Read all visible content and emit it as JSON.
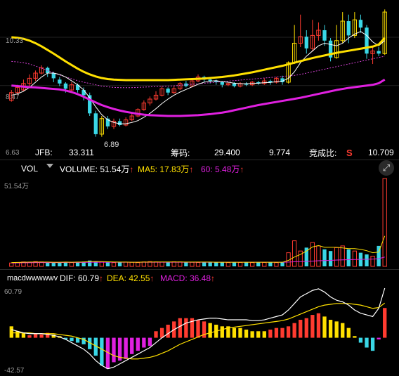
{
  "colors": {
    "up": "#ff3b30",
    "down": "#3ad7e6",
    "hl": "#ffe000",
    "ma_yellow": "#ffe000",
    "ma_magenta": "#e020e0",
    "ma_white": "#ffffff",
    "magenta_dot": "#d040d0",
    "red_arrow": "#ff3b30",
    "bg": "#000000"
  },
  "kline": {
    "axis": {
      "top": "10.33",
      "mid": "8.47",
      "bottom": "6.63",
      "low_marker": "6.89"
    },
    "info": {
      "k1": "JFB:",
      "v1": "33.311",
      "k2": "筹码:",
      "v2": "29.400",
      "v3": "9.774",
      "k3": "竞成比:",
      "k3_badge": "S",
      "v4": "10.709"
    },
    "candles": [
      [
        7.9,
        8.2,
        7.85,
        8.3
      ],
      [
        8.2,
        8.4,
        8.1,
        8.5
      ],
      [
        8.3,
        8.55,
        8.25,
        8.7
      ],
      [
        8.55,
        8.75,
        8.45,
        8.9
      ],
      [
        8.75,
        8.95,
        8.65,
        9.05
      ],
      [
        8.95,
        9.15,
        8.9,
        9.25
      ],
      [
        9.15,
        8.95,
        8.8,
        9.2
      ],
      [
        8.95,
        8.75,
        8.6,
        9.0
      ],
      [
        8.7,
        8.55,
        8.45,
        8.8
      ],
      [
        8.55,
        8.35,
        8.2,
        8.6
      ],
      [
        8.3,
        8.5,
        8.2,
        8.6
      ],
      [
        8.5,
        8.3,
        8.2,
        8.55
      ],
      [
        8.3,
        8.1,
        7.9,
        8.4
      ],
      [
        8.1,
        7.4,
        7.3,
        8.2
      ],
      [
        7.4,
        6.6,
        6.5,
        7.5
      ],
      [
        6.6,
        7.2,
        6.5,
        7.3
      ],
      [
        7.2,
        6.9,
        6.8,
        7.3
      ],
      [
        6.9,
        7.1,
        6.8,
        7.2
      ],
      [
        7.1,
        6.95,
        6.9,
        7.2
      ],
      [
        6.95,
        7.15,
        6.9,
        7.25
      ],
      [
        7.15,
        7.3,
        7.1,
        7.4
      ],
      [
        7.3,
        7.55,
        7.25,
        7.6
      ],
      [
        7.55,
        7.8,
        7.5,
        7.9
      ],
      [
        7.8,
        7.95,
        7.7,
        8.05
      ],
      [
        7.95,
        8.1,
        7.9,
        8.25
      ],
      [
        8.1,
        8.35,
        8.05,
        8.45
      ],
      [
        8.35,
        8.2,
        8.1,
        8.4
      ],
      [
        8.2,
        8.35,
        8.15,
        8.45
      ],
      [
        8.35,
        8.55,
        8.3,
        8.6
      ],
      [
        8.55,
        8.45,
        8.4,
        8.65
      ],
      [
        8.45,
        8.65,
        8.4,
        8.75
      ],
      [
        8.65,
        8.8,
        8.6,
        8.9
      ],
      [
        8.8,
        8.7,
        8.6,
        8.85
      ],
      [
        8.7,
        8.65,
        8.55,
        8.8
      ],
      [
        8.65,
        8.6,
        8.5,
        8.7
      ],
      [
        8.6,
        8.5,
        8.4,
        8.65
      ],
      [
        8.5,
        8.55,
        8.45,
        8.6
      ],
      [
        8.55,
        8.45,
        8.4,
        8.6
      ],
      [
        8.45,
        8.55,
        8.4,
        8.6
      ],
      [
        8.55,
        8.5,
        8.45,
        8.6
      ],
      [
        8.5,
        8.6,
        8.45,
        8.65
      ],
      [
        8.6,
        8.55,
        8.5,
        8.65
      ],
      [
        8.55,
        8.65,
        8.5,
        8.75
      ],
      [
        8.65,
        8.6,
        8.5,
        8.7
      ],
      [
        8.6,
        8.75,
        8.55,
        8.8
      ],
      [
        8.75,
        8.6,
        8.5,
        8.85
      ],
      [
        8.6,
        9.35,
        8.55,
        9.4
      ],
      [
        9.35,
        10.1,
        9.3,
        10.8
      ],
      [
        10.1,
        10.35,
        9.95,
        11.2
      ],
      [
        10.35,
        9.9,
        9.7,
        10.6
      ],
      [
        9.9,
        10.4,
        9.8,
        11.0
      ],
      [
        10.4,
        10.6,
        10.2,
        10.9
      ],
      [
        10.6,
        10.2,
        10.0,
        10.8
      ],
      [
        10.2,
        9.55,
        9.4,
        10.3
      ],
      [
        9.55,
        10.2,
        9.5,
        10.8
      ],
      [
        10.2,
        10.95,
        10.1,
        11.3
      ],
      [
        10.95,
        10.4,
        10.1,
        11.2
      ],
      [
        10.4,
        11.0,
        10.3,
        11.3
      ],
      [
        11.0,
        10.7,
        10.5,
        11.2
      ],
      [
        10.7,
        9.7,
        9.5,
        10.8
      ],
      [
        9.7,
        9.8,
        9.3,
        10.0
      ],
      [
        9.8,
        9.7,
        9.6,
        9.95
      ],
      [
        9.7,
        11.3,
        9.65,
        11.4
      ]
    ],
    "ma_yellow": [
      10.33,
      10.31,
      10.27,
      10.2,
      10.1,
      9.98,
      9.84,
      9.7,
      9.55,
      9.4,
      9.26,
      9.12,
      9.0,
      8.9,
      8.82,
      8.76,
      8.72,
      8.7,
      8.69,
      8.68,
      8.68,
      8.68,
      8.68,
      8.68,
      8.68,
      8.68,
      8.68,
      8.69,
      8.7,
      8.71,
      8.72,
      8.73,
      8.74,
      8.76,
      8.78,
      8.8,
      8.83,
      8.86,
      8.9,
      8.94,
      8.98,
      9.03,
      9.08,
      9.13,
      9.18,
      9.23,
      9.29,
      9.35,
      9.41,
      9.47,
      9.53,
      9.58,
      9.63,
      9.68,
      9.73,
      9.77,
      9.81,
      9.85,
      9.89,
      9.93,
      9.97,
      10.05,
      10.3
    ],
    "ma_magenta": [
      8.47,
      8.45,
      8.43,
      8.41,
      8.4,
      8.38,
      8.36,
      8.34,
      8.32,
      8.28,
      8.22,
      8.14,
      8.04,
      7.93,
      7.82,
      7.72,
      7.64,
      7.57,
      7.51,
      7.46,
      7.42,
      7.38,
      7.35,
      7.33,
      7.32,
      7.31,
      7.3,
      7.3,
      7.3,
      7.31,
      7.32,
      7.33,
      7.35,
      7.37,
      7.4,
      7.43,
      7.47,
      7.52,
      7.57,
      7.62,
      7.67,
      7.72,
      7.76,
      7.8,
      7.84,
      7.88,
      7.92,
      7.96,
      8.0,
      8.05,
      8.1,
      8.15,
      8.2,
      8.25,
      8.3,
      8.34,
      8.38,
      8.41,
      8.44,
      8.47,
      8.5,
      8.56,
      8.7
    ],
    "ma_dotted": [
      9.4,
      9.38,
      9.35,
      9.3,
      9.22,
      9.14,
      9.05,
      8.96,
      8.88,
      8.8,
      8.73,
      8.66,
      8.6,
      8.55,
      8.5,
      8.45,
      8.42,
      8.4,
      8.39,
      8.39,
      8.39,
      8.4,
      8.41,
      8.42,
      8.43,
      8.44,
      8.45,
      8.46,
      8.48,
      8.5,
      8.52,
      8.54,
      8.56,
      8.58,
      8.6,
      8.62,
      8.64,
      8.66,
      8.68,
      8.7,
      8.72,
      8.74,
      8.76,
      8.78,
      8.8,
      8.82,
      8.84,
      8.86,
      8.9,
      8.95,
      9.0,
      9.05,
      9.1,
      9.15,
      9.2,
      9.25,
      9.3,
      9.35,
      9.4,
      9.45,
      9.5,
      9.55,
      9.6
    ],
    "ma_white": [
      8.1,
      8.15,
      8.25,
      8.4,
      8.6,
      8.8,
      8.95,
      8.95,
      8.9,
      8.8,
      8.65,
      8.5,
      8.3,
      8.0,
      7.65,
      7.35,
      7.15,
      7.05,
      7.0,
      7.0,
      7.05,
      7.12,
      7.25,
      7.4,
      7.58,
      7.78,
      7.95,
      8.1,
      8.22,
      8.32,
      8.42,
      8.52,
      8.6,
      8.64,
      8.66,
      8.62,
      8.6,
      8.56,
      8.54,
      8.54,
      8.55,
      8.56,
      8.58,
      8.59,
      8.62,
      8.64,
      8.75,
      9.0,
      9.35,
      9.6,
      9.8,
      10.0,
      10.1,
      10.05,
      10.0,
      10.1,
      10.3,
      10.45,
      10.55,
      10.4,
      10.15,
      10.0,
      10.2
    ]
  },
  "volume": {
    "header": {
      "name": "VOL",
      "volume_label": "VOLUME: 51.54万",
      "ma5_label": "MA5: 17.83万",
      "ma60_label": "60: 5.48万"
    },
    "axis_top": "51.54万",
    "values": [
      2.0,
      2.2,
      2.6,
      2.4,
      2.8,
      2.6,
      2.5,
      2.3,
      2.4,
      2.6,
      2.2,
      2.5,
      2.8,
      3.4,
      3.0,
      2.6,
      2.4,
      2.2,
      2.3,
      2.5,
      2.4,
      2.2,
      2.6,
      2.8,
      2.6,
      2.5,
      2.4,
      2.7,
      2.6,
      2.5,
      2.4,
      2.3,
      2.6,
      2.4,
      2.5,
      2.3,
      2.2,
      2.4,
      2.3,
      2.5,
      2.2,
      2.4,
      2.3,
      2.5,
      2.2,
      2.4,
      8.0,
      15.0,
      9.0,
      11.0,
      14.0,
      12.0,
      10.0,
      9.0,
      11.0,
      12.0,
      10.0,
      9.0,
      8.0,
      7.0,
      6.0,
      12.0,
      51.54
    ],
    "colors_by_candle": true,
    "ma5": [
      2.2,
      2.3,
      2.4,
      2.5,
      2.5,
      2.5,
      2.5,
      2.4,
      2.4,
      2.5,
      2.4,
      2.5,
      2.6,
      2.8,
      2.9,
      2.8,
      2.7,
      2.6,
      2.5,
      2.5,
      2.4,
      2.4,
      2.5,
      2.5,
      2.6,
      2.6,
      2.6,
      2.6,
      2.6,
      2.5,
      2.5,
      2.5,
      2.5,
      2.5,
      2.4,
      2.4,
      2.4,
      2.4,
      2.4,
      2.4,
      2.4,
      2.4,
      2.4,
      2.4,
      2.4,
      2.4,
      3.5,
      5.5,
      7.0,
      9.0,
      11.4,
      12.2,
      11.2,
      11.2,
      11.2,
      10.8,
      10.4,
      10.4,
      10.0,
      9.2,
      8.0,
      8.4,
      17.83
    ],
    "ma60": [
      2.0,
      2.0,
      2.1,
      2.1,
      2.2,
      2.2,
      2.2,
      2.2,
      2.2,
      2.3,
      2.3,
      2.3,
      2.3,
      2.4,
      2.4,
      2.4,
      2.4,
      2.4,
      2.4,
      2.4,
      2.4,
      2.4,
      2.4,
      2.4,
      2.4,
      2.4,
      2.4,
      2.4,
      2.4,
      2.4,
      2.4,
      2.4,
      2.4,
      2.4,
      2.4,
      2.4,
      2.4,
      2.4,
      2.4,
      2.4,
      2.4,
      2.4,
      2.4,
      2.4,
      2.4,
      2.4,
      2.5,
      2.7,
      2.8,
      3.0,
      3.1,
      3.3,
      3.4,
      3.5,
      3.7,
      3.8,
      3.9,
      4.0,
      4.1,
      4.2,
      4.3,
      4.5,
      5.48
    ]
  },
  "macd": {
    "header": {
      "name": "macdwwwwwv",
      "dif_label": "DIF: 60.79",
      "dea_label": "DEA: 42.55",
      "macd_label": "MACD: 36.48"
    },
    "axis": {
      "top": "60.79",
      "bottom": "-42.57"
    },
    "hist": [
      14,
      8,
      6,
      3,
      5,
      4,
      6,
      4,
      2,
      -2,
      -4,
      -6,
      -8,
      -14,
      -22,
      -34,
      -38,
      -30,
      -28,
      -26,
      -20,
      -16,
      -12,
      -10,
      8,
      12,
      16,
      20,
      24,
      24,
      24,
      22,
      20,
      18,
      16,
      14,
      14,
      12,
      12,
      10,
      8,
      8,
      8,
      10,
      12,
      12,
      14,
      18,
      22,
      24,
      28,
      30,
      26,
      22,
      20,
      18,
      12,
      2,
      -6,
      -12,
      -16,
      -2,
      36.48
    ],
    "hist_colors": [
      "hl",
      "hl",
      "hl",
      "up",
      "up",
      "up",
      "up",
      "hl",
      "hl",
      "down",
      "down",
      "down",
      "down",
      "down",
      "down",
      "down",
      "magenta",
      "magenta",
      "magenta",
      "magenta",
      "magenta",
      "magenta",
      "magenta",
      "magenta",
      "up",
      "up",
      "up",
      "up",
      "up",
      "up",
      "up",
      "up",
      "up",
      "hl",
      "hl",
      "hl",
      "hl",
      "hl",
      "hl",
      "hl",
      "hl",
      "hl",
      "hl",
      "up",
      "up",
      "up",
      "up",
      "up",
      "up",
      "up",
      "up",
      "up",
      "hl",
      "hl",
      "hl",
      "hl",
      "hl",
      "hl",
      "down",
      "down",
      "down",
      "magenta",
      "up"
    ],
    "dif": [
      10,
      8,
      6,
      5,
      5,
      5,
      4,
      3,
      1,
      -2,
      -6,
      -10,
      -14,
      -20,
      -28,
      -34,
      -38,
      -36,
      -32,
      -28,
      -24,
      -20,
      -16,
      -12,
      -6,
      0,
      5,
      10,
      14,
      18,
      20,
      22,
      23,
      24,
      24,
      23,
      22,
      22,
      22,
      22,
      21,
      21,
      22,
      24,
      26,
      28,
      34,
      42,
      50,
      54,
      58,
      60,
      56,
      50,
      46,
      44,
      40,
      34,
      30,
      28,
      26,
      36,
      60.79
    ],
    "dea": [
      6,
      6,
      6,
      6,
      5,
      5,
      5,
      5,
      4,
      3,
      2,
      0,
      -2,
      -6,
      -10,
      -14,
      -18,
      -22,
      -24,
      -25,
      -26,
      -26,
      -25,
      -24,
      -22,
      -19,
      -16,
      -12,
      -8,
      -5,
      -2,
      1,
      4,
      6,
      8,
      10,
      12,
      13,
      14,
      15,
      16,
      17,
      18,
      19,
      20,
      21,
      23,
      26,
      29,
      32,
      35,
      38,
      40,
      41,
      42,
      42,
      42,
      41,
      40,
      38,
      36,
      37,
      42.55
    ]
  }
}
